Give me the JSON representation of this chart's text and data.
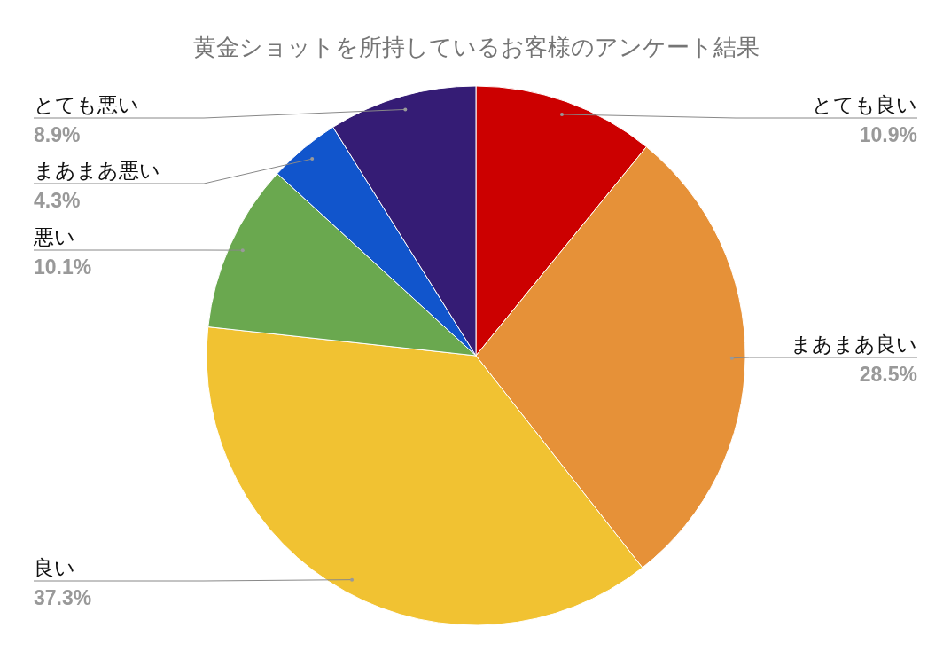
{
  "chart_data": {
    "type": "pie",
    "title": "黄金ショットを所持しているお客様のアンケート結果",
    "categories": [
      "とても良い",
      "まあまあ良い",
      "良い",
      "悪い",
      "まあまあ悪い",
      "とても悪い"
    ],
    "values": [
      10.9,
      28.5,
      37.3,
      10.1,
      4.3,
      8.9
    ],
    "colors": [
      "#cc0000",
      "#e69138",
      "#f1c232",
      "#6aa84f",
      "#1155cc",
      "#351c75"
    ],
    "value_labels": [
      "10.9%",
      "28.5%",
      "37.3%",
      "10.1%",
      "4.3%",
      "8.9%"
    ]
  }
}
